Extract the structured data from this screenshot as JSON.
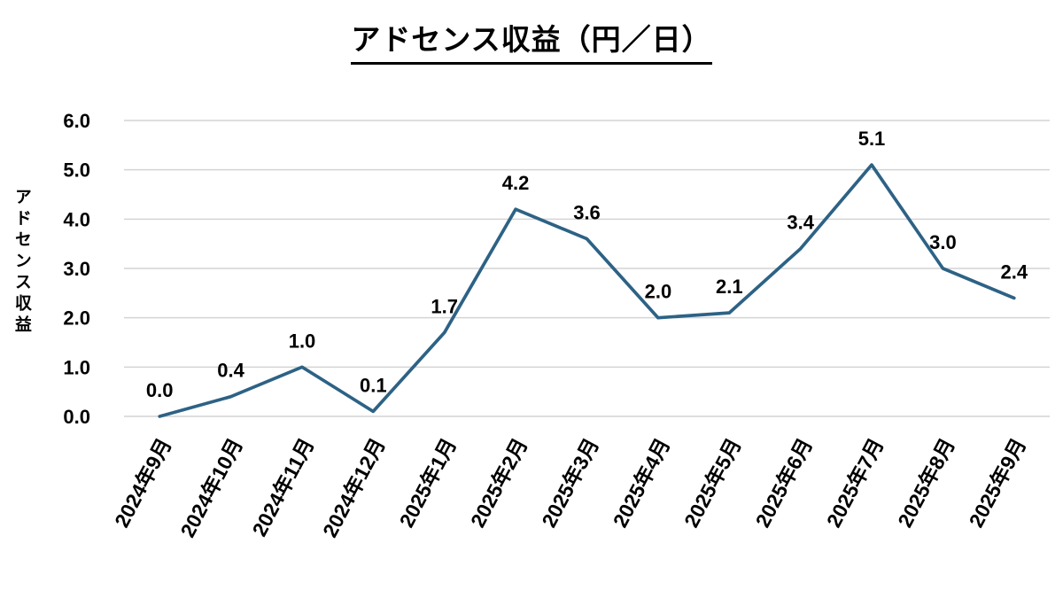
{
  "chart_data": {
    "type": "line",
    "title": "アドセンス収益（円／日）",
    "ylabel": "アドセンス収益",
    "xlabel": "",
    "categories": [
      "2024年9月",
      "2024年10月",
      "2024年11月",
      "2024年12月",
      "2025年1月",
      "2025年2月",
      "2025年3月",
      "2025年4月",
      "2025年5月",
      "2025年6月",
      "2025年7月",
      "2025年8月",
      "2025年9月"
    ],
    "values": [
      0.0,
      0.4,
      1.0,
      0.1,
      1.7,
      4.2,
      3.6,
      2.0,
      2.1,
      3.4,
      5.1,
      3.0,
      2.4
    ],
    "data_labels": [
      "0.0",
      "0.4",
      "1.0",
      "0.1",
      "1.7",
      "4.2",
      "3.6",
      "2.0",
      "2.1",
      "3.4",
      "5.1",
      "3.0",
      "2.4"
    ],
    "ylim": [
      0.0,
      6.0
    ],
    "ytick_step": 1.0,
    "ytick_labels": [
      "0.0",
      "1.0",
      "2.0",
      "3.0",
      "4.0",
      "5.0",
      "6.0"
    ],
    "grid": true,
    "legend": "none",
    "colors": {
      "line": "#2D6285",
      "gridline": "#D4D4D4",
      "text": "#000000",
      "background": "#FFFFFF"
    }
  }
}
